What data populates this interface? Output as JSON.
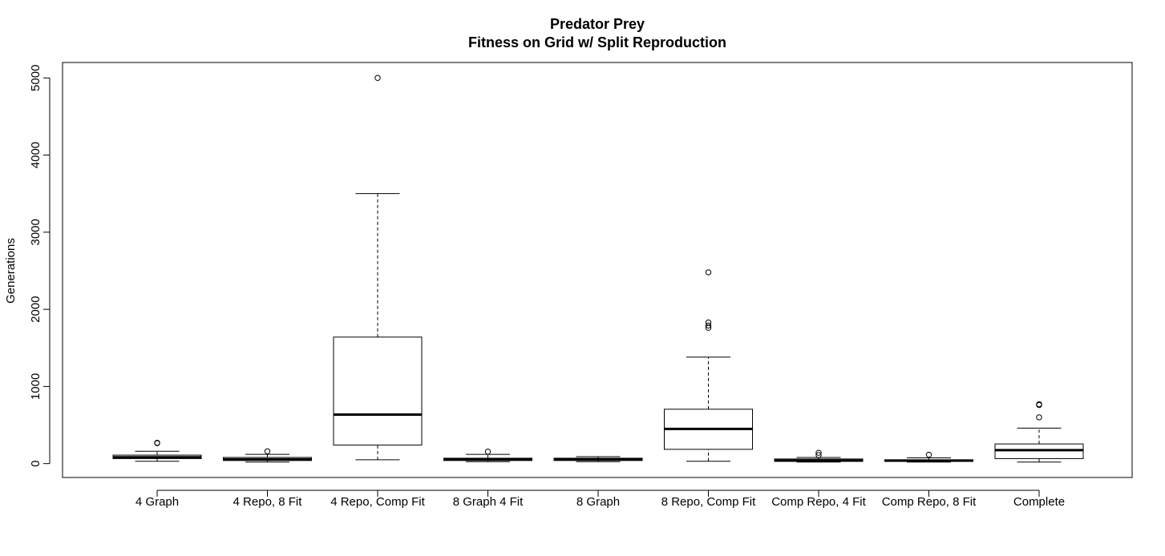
{
  "chart_data": {
    "type": "boxplot",
    "title": "Predator Prey",
    "subtitle": "Fitness on Grid w/ Split Reproduction",
    "xlabel": "",
    "ylabel": "Generations",
    "ylim": [
      -180,
      5200
    ],
    "yticks": [
      0,
      1000,
      2000,
      3000,
      4000,
      5000
    ],
    "grid": false,
    "legend": "none",
    "boxes": [
      {
        "label": "4 Graph",
        "whisker_low": 30,
        "q1": 65,
        "median": 82,
        "q3": 110,
        "whisker_high": 160,
        "outliers": [
          265,
          270
        ]
      },
      {
        "label": "4 Repo, 8 Fit",
        "whisker_low": 20,
        "q1": 40,
        "median": 55,
        "q3": 80,
        "whisker_high": 120,
        "outliers": [
          160
        ]
      },
      {
        "label": "4 Repo, Comp Fit",
        "whisker_low": 50,
        "q1": 240,
        "median": 635,
        "q3": 1640,
        "whisker_high": 3500,
        "outliers": [
          5000
        ]
      },
      {
        "label": "8 Graph 4 Fit",
        "whisker_low": 25,
        "q1": 40,
        "median": 55,
        "q3": 70,
        "whisker_high": 120,
        "outliers": [
          155
        ]
      },
      {
        "label": "8 Graph",
        "whisker_low": 25,
        "q1": 40,
        "median": 55,
        "q3": 70,
        "whisker_high": 90,
        "outliers": []
      },
      {
        "label": "8 Repo, Comp Fit",
        "whisker_low": 30,
        "q1": 185,
        "median": 450,
        "q3": 705,
        "whisker_high": 1380,
        "outliers": [
          1760,
          1790,
          1830,
          2480
        ]
      },
      {
        "label": "Comp Repo, 4 Fit",
        "whisker_low": 20,
        "q1": 30,
        "median": 40,
        "q3": 60,
        "whisker_high": 80,
        "outliers": [
          110,
          140
        ]
      },
      {
        "label": "Comp Repo, 8 Fit",
        "whisker_low": 20,
        "q1": 28,
        "median": 38,
        "q3": 50,
        "whisker_high": 75,
        "outliers": [
          115
        ]
      },
      {
        "label": "Complete",
        "whisker_low": 20,
        "q1": 65,
        "median": 175,
        "q3": 255,
        "whisker_high": 460,
        "outliers": [
          600,
          760,
          770
        ]
      }
    ]
  }
}
